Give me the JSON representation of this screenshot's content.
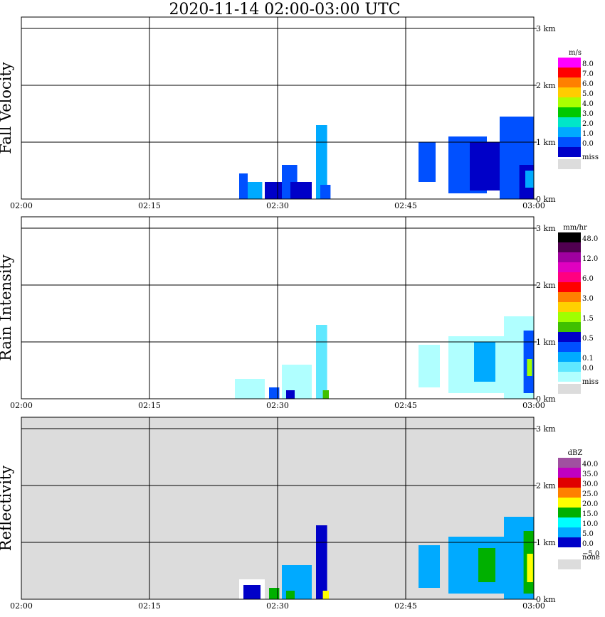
{
  "title": "2020-11-14   02:00-03:00 UTC",
  "chart_data": [
    {
      "type": "heatmap",
      "title": "Fall Velocity",
      "units": "m/s",
      "x_ticks": [
        "02:00",
        "02:15",
        "02:30",
        "02:45",
        "03:00"
      ],
      "y_ticks": [
        "0 km",
        "1 km",
        "2 km",
        "3 km"
      ],
      "ylim": [
        0,
        3.0
      ],
      "background": "#ffffff",
      "legend": [
        {
          "label": "8.0",
          "color": "#ff00ff"
        },
        {
          "label": "7.0",
          "color": "#ff0000"
        },
        {
          "label": "6.0",
          "color": "#ff8000"
        },
        {
          "label": "5.0",
          "color": "#ffcc00"
        },
        {
          "label": "4.0",
          "color": "#aaff00"
        },
        {
          "label": "3.0",
          "color": "#00c800"
        },
        {
          "label": "2.0",
          "color": "#00e6c8"
        },
        {
          "label": "1.0",
          "color": "#00aaff"
        },
        {
          "label": "0.0",
          "color": "#0050ff"
        },
        {
          "label": "",
          "color": "#0000c8"
        },
        {
          "label": "miss",
          "color": "#dcdcdc"
        }
      ],
      "echoes": [
        {
          "t0": 25.5,
          "t1": 26.5,
          "h0": 0,
          "h1": 0.45,
          "color": "#0050ff"
        },
        {
          "t0": 26.5,
          "t1": 28.2,
          "h0": 0,
          "h1": 0.3,
          "color": "#00aaff"
        },
        {
          "t0": 28.5,
          "t1": 31.0,
          "h0": 0,
          "h1": 0.3,
          "color": "#0000c8"
        },
        {
          "t0": 30.5,
          "t1": 32.3,
          "h0": 0,
          "h1": 0.6,
          "color": "#0050ff"
        },
        {
          "t0": 31.5,
          "t1": 34.0,
          "h0": 0,
          "h1": 0.3,
          "color": "#0000c8"
        },
        {
          "t0": 34.5,
          "t1": 35.8,
          "h0": 0,
          "h1": 1.3,
          "color": "#00aaff"
        },
        {
          "t0": 35.0,
          "t1": 36.2,
          "h0": 0,
          "h1": 0.25,
          "color": "#0050ff"
        },
        {
          "t0": 46.5,
          "t1": 48.5,
          "h0": 0.3,
          "h1": 1.0,
          "color": "#0050ff"
        },
        {
          "t0": 50.0,
          "t1": 54.5,
          "h0": 0.1,
          "h1": 1.1,
          "color": "#0050ff"
        },
        {
          "t0": 52.5,
          "t1": 56.0,
          "h0": 0.15,
          "h1": 1.0,
          "color": "#0000c8"
        },
        {
          "t0": 56.0,
          "t1": 60.0,
          "h0": 0.0,
          "h1": 1.45,
          "color": "#0050ff"
        },
        {
          "t0": 58.3,
          "t1": 60.0,
          "h0": 0.0,
          "h1": 0.6,
          "color": "#0000c8"
        },
        {
          "t0": 59.0,
          "t1": 60.0,
          "h0": 0.2,
          "h1": 0.5,
          "color": "#00aaff"
        }
      ]
    },
    {
      "type": "heatmap",
      "title": "Rain Intensity",
      "units": "mm/hr",
      "x_ticks": [
        "02:00",
        "02:15",
        "02:30",
        "02:45",
        "03:00"
      ],
      "y_ticks": [
        "0 km",
        "1 km",
        "2 km",
        "3 km"
      ],
      "ylim": [
        0,
        3.0
      ],
      "background": "#ffffff",
      "legend": [
        {
          "label": "48.0",
          "color": "#000000"
        },
        {
          "label": "",
          "color": "#500050"
        },
        {
          "label": "12.0",
          "color": "#a000a0"
        },
        {
          "label": "",
          "color": "#e000c0"
        },
        {
          "label": "6.0",
          "color": "#ff0080"
        },
        {
          "label": "",
          "color": "#ff0000"
        },
        {
          "label": "3.0",
          "color": "#ff8000"
        },
        {
          "label": "",
          "color": "#ffd000"
        },
        {
          "label": "1.5",
          "color": "#a0ff00"
        },
        {
          "label": "",
          "color": "#40c000"
        },
        {
          "label": "0.5",
          "color": "#0000c8"
        },
        {
          "label": "",
          "color": "#0050ff"
        },
        {
          "label": "0.1",
          "color": "#00aaff"
        },
        {
          "label": "0.0",
          "color": "#60e8ff"
        },
        {
          "label": "",
          "color": "#b0ffff"
        },
        {
          "label": "miss",
          "color": "#dcdcdc"
        }
      ],
      "echoes": [
        {
          "t0": 25.0,
          "t1": 28.5,
          "h0": 0,
          "h1": 0.35,
          "color": "#b0ffff"
        },
        {
          "t0": 29.0,
          "t1": 30.2,
          "h0": 0,
          "h1": 0.2,
          "color": "#0050ff"
        },
        {
          "t0": 30.5,
          "t1": 34.0,
          "h0": 0,
          "h1": 0.6,
          "color": "#b0ffff"
        },
        {
          "t0": 31.0,
          "t1": 32.0,
          "h0": 0,
          "h1": 0.15,
          "color": "#0000c8"
        },
        {
          "t0": 34.5,
          "t1": 35.8,
          "h0": 0,
          "h1": 1.3,
          "color": "#60e8ff"
        },
        {
          "t0": 35.3,
          "t1": 36.0,
          "h0": 0,
          "h1": 0.15,
          "color": "#40c000"
        },
        {
          "t0": 46.5,
          "t1": 49.0,
          "h0": 0.2,
          "h1": 0.95,
          "color": "#b0ffff"
        },
        {
          "t0": 50.0,
          "t1": 56.5,
          "h0": 0.1,
          "h1": 1.1,
          "color": "#b0ffff"
        },
        {
          "t0": 53.0,
          "t1": 55.5,
          "h0": 0.3,
          "h1": 1.0,
          "color": "#00aaff"
        },
        {
          "t0": 56.5,
          "t1": 60.0,
          "h0": 0.0,
          "h1": 1.45,
          "color": "#b0ffff"
        },
        {
          "t0": 58.8,
          "t1": 60.0,
          "h0": 0.1,
          "h1": 1.2,
          "color": "#0050ff"
        },
        {
          "t0": 59.2,
          "t1": 59.8,
          "h0": 0.4,
          "h1": 0.7,
          "color": "#a0ff00"
        }
      ]
    },
    {
      "type": "heatmap",
      "title": "Reflectivity",
      "units": "dBZ",
      "x_ticks": [
        "02:00",
        "02:15",
        "02:30",
        "02:45",
        "03:00"
      ],
      "y_ticks": [
        "0 km",
        "1 km",
        "2 km",
        "3 km"
      ],
      "ylim": [
        0,
        3.0
      ],
      "background": "#dcdcdc",
      "legend": [
        {
          "label": "40.0",
          "color": "#a050a0"
        },
        {
          "label": "35.0",
          "color": "#c000c0"
        },
        {
          "label": "30.0",
          "color": "#e00000"
        },
        {
          "label": "25.0",
          "color": "#ff8000"
        },
        {
          "label": "20.0",
          "color": "#ffff00"
        },
        {
          "label": "15.0",
          "color": "#00b000"
        },
        {
          "label": "10.0",
          "color": "#00ffff"
        },
        {
          "label": "5.0",
          "color": "#00aaff"
        },
        {
          "label": "0.0",
          "color": "#0000c8"
        },
        {
          "label": "−5.0",
          "color": "#ffffff"
        },
        {
          "label": "none",
          "color": "#dcdcdc"
        }
      ],
      "echoes": [
        {
          "t0": 25.5,
          "t1": 28.5,
          "h0": 0,
          "h1": 0.35,
          "color": "#ffffff"
        },
        {
          "t0": 26.0,
          "t1": 28.0,
          "h0": 0,
          "h1": 0.25,
          "color": "#0000c8"
        },
        {
          "t0": 29.0,
          "t1": 30.2,
          "h0": 0,
          "h1": 0.2,
          "color": "#00b000"
        },
        {
          "t0": 30.5,
          "t1": 34.0,
          "h0": 0,
          "h1": 0.6,
          "color": "#00aaff"
        },
        {
          "t0": 31.0,
          "t1": 32.0,
          "h0": 0,
          "h1": 0.15,
          "color": "#00b000"
        },
        {
          "t0": 34.5,
          "t1": 35.8,
          "h0": 0,
          "h1": 1.3,
          "color": "#0000c8"
        },
        {
          "t0": 35.3,
          "t1": 36.0,
          "h0": 0,
          "h1": 0.15,
          "color": "#ffff00"
        },
        {
          "t0": 46.5,
          "t1": 49.0,
          "h0": 0.2,
          "h1": 0.95,
          "color": "#00aaff"
        },
        {
          "t0": 50.0,
          "t1": 56.5,
          "h0": 0.1,
          "h1": 1.1,
          "color": "#00aaff"
        },
        {
          "t0": 53.5,
          "t1": 55.5,
          "h0": 0.3,
          "h1": 0.9,
          "color": "#00b000"
        },
        {
          "t0": 56.5,
          "t1": 60.0,
          "h0": 0.0,
          "h1": 1.45,
          "color": "#00aaff"
        },
        {
          "t0": 58.8,
          "t1": 60.0,
          "h0": 0.1,
          "h1": 1.2,
          "color": "#00b000"
        },
        {
          "t0": 59.2,
          "t1": 59.9,
          "h0": 0.3,
          "h1": 0.8,
          "color": "#ffff00"
        }
      ]
    }
  ]
}
